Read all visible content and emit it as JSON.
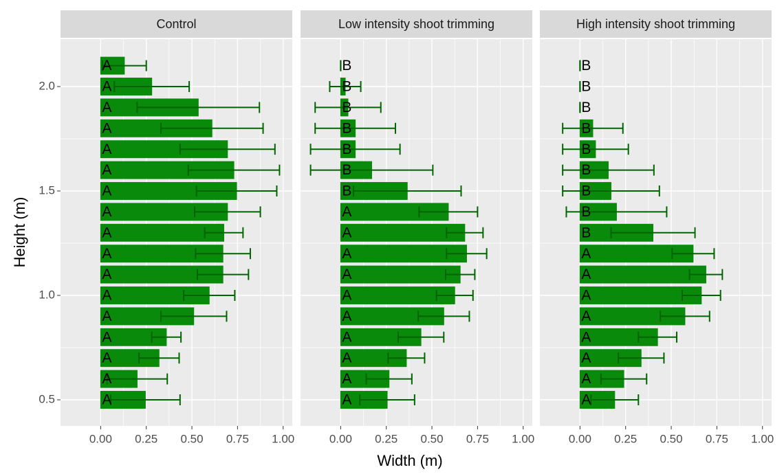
{
  "chart_data": {
    "type": "bar",
    "orientation": "horizontal",
    "xlabel": "Width (m)",
    "ylabel": "Height (m)",
    "y": [
      0.5,
      0.6,
      0.7,
      0.8,
      0.9,
      1.0,
      1.1,
      1.2,
      1.3,
      1.4,
      1.5,
      1.6,
      1.7,
      1.8,
      1.9,
      2.0,
      2.1
    ],
    "xlim": [
      -0.22,
      1.05
    ],
    "xticks": [
      {
        "value": 0,
        "label": "0.00"
      },
      {
        "value": 0.25,
        "label": "0.25"
      },
      {
        "value": 0.5,
        "label": "0.50"
      },
      {
        "value": 0.75,
        "label": "0.75"
      },
      {
        "value": 1,
        "label": "1.00"
      }
    ],
    "ylim": [
      0.375,
      2.227
    ],
    "yticks": [
      0.5,
      {
        "value": 1,
        "label": "1.0"
      },
      1.5,
      {
        "value": 2,
        "label": "2.0"
      }
    ],
    "grid": true,
    "color": "#0a8a0a",
    "error_color": "#006400",
    "facets": [
      {
        "title": "Control",
        "values": [
          0.245,
          0.2,
          0.32,
          0.36,
          0.51,
          0.595,
          0.67,
          0.67,
          0.675,
          0.695,
          0.745,
          0.73,
          0.695,
          0.61,
          0.535,
          0.28,
          0.13
        ],
        "errors": [
          0.19,
          0.165,
          0.11,
          0.08,
          0.18,
          0.14,
          0.14,
          0.15,
          0.105,
          0.18,
          0.22,
          0.25,
          0.26,
          0.28,
          0.335,
          0.205,
          0.12
        ],
        "letters": [
          "A",
          "A",
          "A",
          "A",
          "A",
          "A",
          "A",
          "A",
          "A",
          "A",
          "A",
          "A",
          "A",
          "A",
          "A",
          "A",
          "A"
        ]
      },
      {
        "title": "Low intensity shoot trimming",
        "values": [
          0.255,
          0.265,
          0.36,
          0.44,
          0.565,
          0.625,
          0.655,
          0.69,
          0.68,
          0.59,
          0.365,
          0.17,
          0.08,
          0.08,
          0.04,
          0.025,
          0
        ],
        "errors": [
          0.15,
          0.125,
          0.1,
          0.125,
          0.14,
          0.1,
          0.08,
          0.11,
          0.1,
          0.16,
          0.295,
          0.335,
          0.245,
          0.22,
          0.18,
          0.085,
          0
        ],
        "letters": [
          "A",
          "A",
          "A",
          "A",
          "A",
          "A",
          "A",
          "A",
          "A",
          "A",
          "B",
          "B",
          "B",
          "B",
          "B",
          "B",
          "B"
        ]
      },
      {
        "title": "High intensity shoot trimming",
        "values": [
          0.19,
          0.24,
          0.335,
          0.425,
          0.575,
          0.665,
          0.69,
          0.62,
          0.4,
          0.2,
          0.17,
          0.155,
          0.085,
          0.07,
          0,
          0,
          0
        ],
        "errors": [
          0.13,
          0.125,
          0.125,
          0.105,
          0.135,
          0.105,
          0.09,
          0.115,
          0.23,
          0.275,
          0.265,
          0.25,
          0.18,
          0.165,
          0,
          0,
          0
        ],
        "letters": [
          "A",
          "A",
          "A",
          "A",
          "A",
          "A",
          "A",
          "A",
          "B",
          "B",
          "B",
          "B",
          "B",
          "B",
          "B",
          "B",
          "B"
        ]
      }
    ]
  }
}
